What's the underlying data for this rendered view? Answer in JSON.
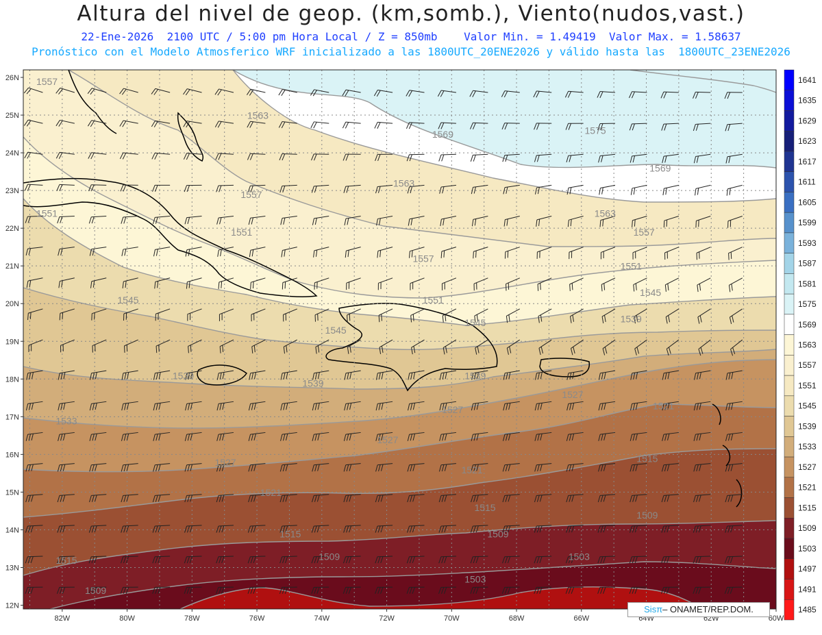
{
  "header": {
    "title": "Altura del nivel de geop. (km,somb.), Viento(nudos,vast.)",
    "date": "22-Ene-2026",
    "time": "2100 UTC / 5:00 pm Hora Local / Z = 850mb",
    "min_label": "Valor Min. = 1.49419",
    "max_label": "Valor Max. = 1.58637",
    "forecast": "Pronóstico con el Modelo Atmosferico WRF inicializado a las 1800UTC_20ENE2026 y válido hasta las  1800UTC_23ENE2026"
  },
  "axes": {
    "lat_labels": [
      "26N",
      "25N",
      "24N",
      "23N",
      "22N",
      "21N",
      "20N",
      "19N",
      "18N",
      "17N",
      "16N",
      "15N",
      "14N",
      "13N",
      "12N"
    ],
    "lon_labels": [
      "82W",
      "80W",
      "78W",
      "76W",
      "74W",
      "72W",
      "70W",
      "68W",
      "66W",
      "64W",
      "62W",
      "60W"
    ]
  },
  "colorbar": {
    "levels": [
      "1641",
      "1635",
      "1629",
      "1623",
      "1617",
      "1611",
      "1605",
      "1599",
      "1593",
      "1587",
      "1581",
      "1575",
      "1569",
      "1563",
      "1557",
      "1551",
      "1545",
      "1539",
      "1533",
      "1527",
      "1521",
      "1515",
      "1509",
      "1503",
      "1497",
      "1491",
      "1485"
    ],
    "colors": [
      "#0000ff",
      "#0b0fd6",
      "#121a9e",
      "#161f78",
      "#1f3491",
      "#2c53ad",
      "#3a6fc2",
      "#5791cc",
      "#7ab2db",
      "#a3d4e8",
      "#c3e8f0",
      "#daf3f6",
      "#ffffff",
      "#fdf6d6",
      "#faf0cf",
      "#f6e9c2",
      "#ecdcae",
      "#e0c794",
      "#d2ad7a",
      "#c69361",
      "#b27247",
      "#9b5033",
      "#7e1e26",
      "#6a0c1c",
      "#b01010",
      "#d81616",
      "#ff1a1a"
    ]
  },
  "contours": {
    "labels": [
      {
        "text": "1557",
        "lon": -82.8,
        "lat": 25.8
      },
      {
        "text": "1563",
        "lon": -76.3,
        "lat": 24.9
      },
      {
        "text": "1569",
        "lon": -70.6,
        "lat": 24.4
      },
      {
        "text": "1575",
        "lon": -65.9,
        "lat": 24.5
      },
      {
        "text": "1569",
        "lon": -63.9,
        "lat": 23.5
      },
      {
        "text": "1563",
        "lon": -71.8,
        "lat": 23.1
      },
      {
        "text": "1557",
        "lon": -76.5,
        "lat": 22.8
      },
      {
        "text": "1551",
        "lon": -82.8,
        "lat": 22.3
      },
      {
        "text": "1563",
        "lon": -65.6,
        "lat": 22.3
      },
      {
        "text": "1551",
        "lon": -76.8,
        "lat": 21.8
      },
      {
        "text": "1557",
        "lon": -64.4,
        "lat": 21.8
      },
      {
        "text": "1557",
        "lon": -71.2,
        "lat": 21.1
      },
      {
        "text": "1551",
        "lon": -64.8,
        "lat": 20.9
      },
      {
        "text": "1545",
        "lon": -64.2,
        "lat": 20.2
      },
      {
        "text": "1545",
        "lon": -80.3,
        "lat": 20.0
      },
      {
        "text": "1551",
        "lon": -70.9,
        "lat": 20.0
      },
      {
        "text": "1539",
        "lon": -64.8,
        "lat": 19.5
      },
      {
        "text": "1545",
        "lon": -73.9,
        "lat": 19.2
      },
      {
        "text": "1545",
        "lon": -69.6,
        "lat": 19.4
      },
      {
        "text": "1539",
        "lon": -78.6,
        "lat": 18.0
      },
      {
        "text": "1539",
        "lon": -74.6,
        "lat": 17.8
      },
      {
        "text": "1539",
        "lon": -69.6,
        "lat": 18.0
      },
      {
        "text": "1527",
        "lon": -66.6,
        "lat": 17.5
      },
      {
        "text": "1521",
        "lon": -63.8,
        "lat": 17.2
      },
      {
        "text": "1527",
        "lon": -70.3,
        "lat": 17.1
      },
      {
        "text": "1533",
        "lon": -82.2,
        "lat": 16.8
      },
      {
        "text": "1527",
        "lon": -72.3,
        "lat": 16.3
      },
      {
        "text": "1527",
        "lon": -77.3,
        "lat": 15.7
      },
      {
        "text": "1515",
        "lon": -64.3,
        "lat": 15.8
      },
      {
        "text": "1521",
        "lon": -69.7,
        "lat": 15.5
      },
      {
        "text": "1521",
        "lon": -75.9,
        "lat": 14.9
      },
      {
        "text": "1515",
        "lon": -69.3,
        "lat": 14.5
      },
      {
        "text": "1509",
        "lon": -64.3,
        "lat": 14.3
      },
      {
        "text": "1515",
        "lon": -75.3,
        "lat": 13.8
      },
      {
        "text": "1509",
        "lon": -68.9,
        "lat": 13.8
      },
      {
        "text": "1503",
        "lon": -66.4,
        "lat": 13.2
      },
      {
        "text": "1515",
        "lon": -82.2,
        "lat": 13.1
      },
      {
        "text": "1509",
        "lon": -74.1,
        "lat": 13.2
      },
      {
        "text": "1503",
        "lon": -69.6,
        "lat": 12.6
      },
      {
        "text": "1509",
        "lon": -81.3,
        "lat": 12.3
      }
    ]
  },
  "credit": {
    "brand": "Sisπ",
    "org": "– ONAMET/REP.DOM."
  }
}
